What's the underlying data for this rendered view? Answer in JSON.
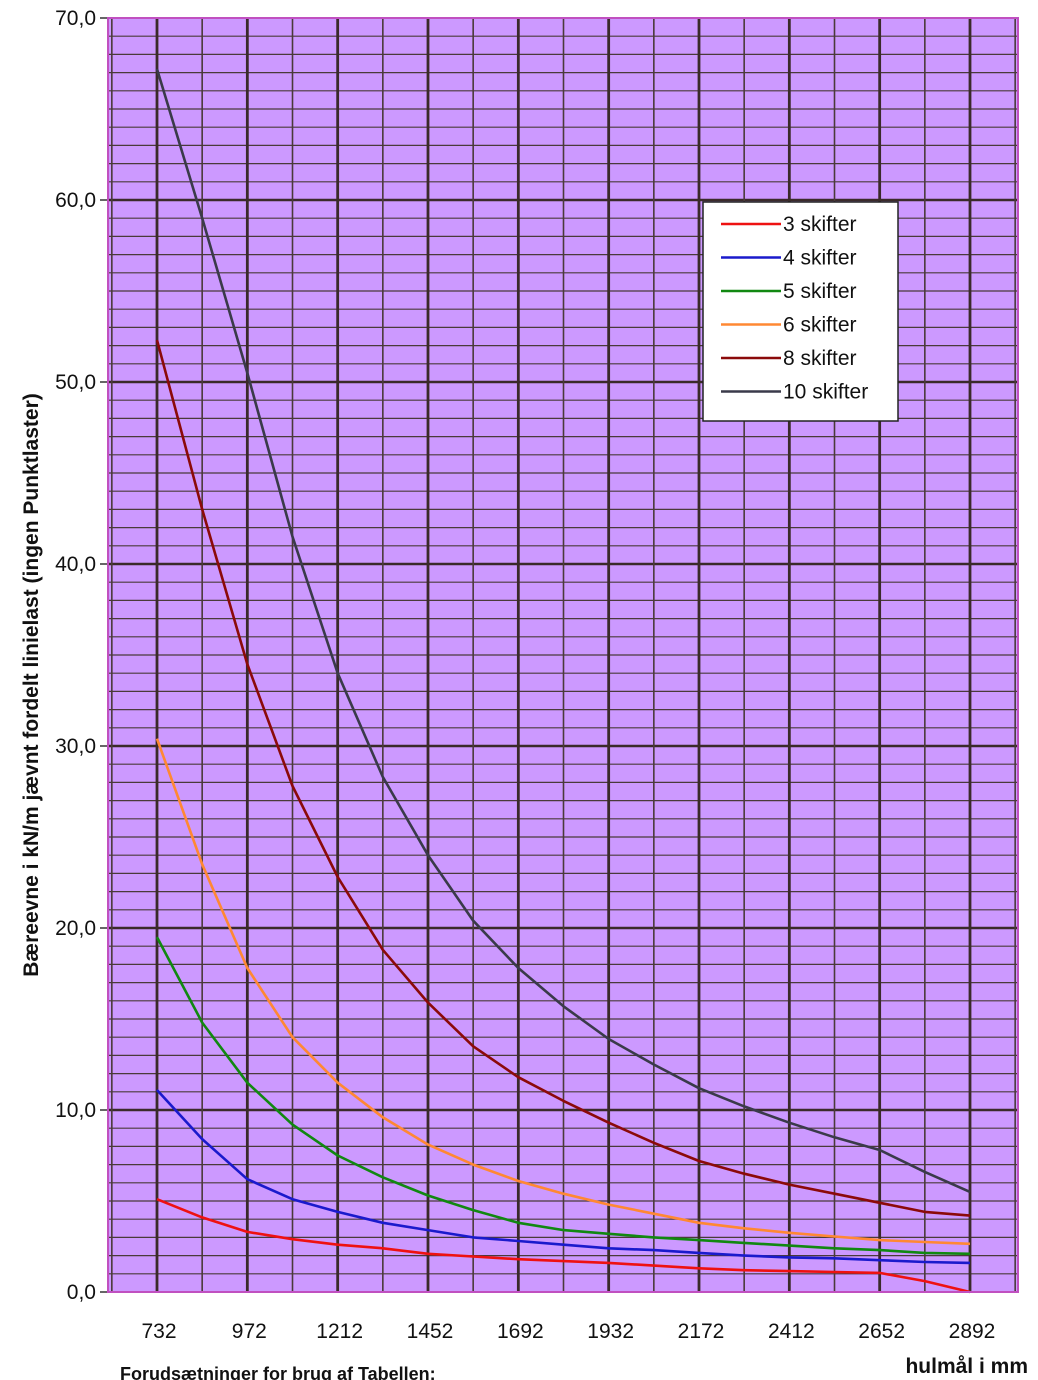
{
  "chart_data": {
    "type": "line",
    "title": "",
    "xlabel": "hulmål i mm",
    "ylabel": "Bæreevne i kN/m jævnt fordelt linielast (ingen Punktlaster)",
    "footnote": "Forudsætninger for brug af Tabellen:",
    "x_ticks": [
      "732",
      "972",
      "1212",
      "1452",
      "1692",
      "1932",
      "2172",
      "2412",
      "2652",
      "2892"
    ],
    "y_ticks": [
      "0,0",
      "10,0",
      "20,0",
      "30,0",
      "40,0",
      "50,0",
      "60,0",
      "70,0"
    ],
    "ylim": [
      0,
      70
    ],
    "xlim": [
      732,
      2892
    ],
    "grid": true,
    "legend_position": "top-right",
    "colors": {
      "plot_background": "#cc99ff",
      "grid_major": "#3a2a2a",
      "grid_minor": "#4a3a3a",
      "frame": "#c050c0"
    },
    "x": [
      732,
      852,
      972,
      1092,
      1212,
      1332,
      1452,
      1572,
      1692,
      1812,
      1932,
      2052,
      2172,
      2292,
      2412,
      2532,
      2652,
      2772,
      2892
    ],
    "series": [
      {
        "name": "3 skifter",
        "color": "#ee1111",
        "values": [
          5.1,
          4.1,
          3.3,
          2.9,
          2.6,
          2.4,
          2.1,
          1.95,
          1.8,
          1.7,
          1.6,
          1.45,
          1.3,
          1.2,
          1.15,
          1.1,
          1.05,
          0.6,
          0.0
        ]
      },
      {
        "name": "4 skifter",
        "color": "#1a1acc",
        "values": [
          11.1,
          8.4,
          6.2,
          5.1,
          4.4,
          3.8,
          3.4,
          3.0,
          2.8,
          2.6,
          2.4,
          2.3,
          2.15,
          2.0,
          1.9,
          1.85,
          1.75,
          1.65,
          1.6
        ]
      },
      {
        "name": "5 skifter",
        "color": "#118811",
        "values": [
          19.5,
          14.8,
          11.5,
          9.2,
          7.5,
          6.3,
          5.3,
          4.5,
          3.8,
          3.4,
          3.2,
          3.0,
          2.85,
          2.7,
          2.55,
          2.4,
          2.3,
          2.15,
          2.1
        ]
      },
      {
        "name": "6 skifter",
        "color": "#ff8833",
        "values": [
          30.4,
          23.5,
          17.8,
          14.0,
          11.5,
          9.6,
          8.1,
          7.0,
          6.1,
          5.4,
          4.8,
          4.3,
          3.8,
          3.5,
          3.25,
          3.05,
          2.85,
          2.75,
          2.65
        ]
      },
      {
        "name": "8 skifter",
        "color": "#8b0a0a",
        "values": [
          52.3,
          43.0,
          34.5,
          27.8,
          22.8,
          18.8,
          15.9,
          13.5,
          11.8,
          10.5,
          9.3,
          8.2,
          7.2,
          6.5,
          5.9,
          5.4,
          4.9,
          4.4,
          4.2
        ]
      },
      {
        "name": "10 skifter",
        "color": "#3a3a4a",
        "values": [
          67.2,
          59.0,
          50.5,
          41.5,
          34.0,
          28.3,
          24.0,
          20.4,
          17.8,
          15.7,
          13.9,
          12.5,
          11.2,
          10.2,
          9.3,
          8.5,
          7.8,
          6.6,
          5.5
        ]
      }
    ]
  }
}
